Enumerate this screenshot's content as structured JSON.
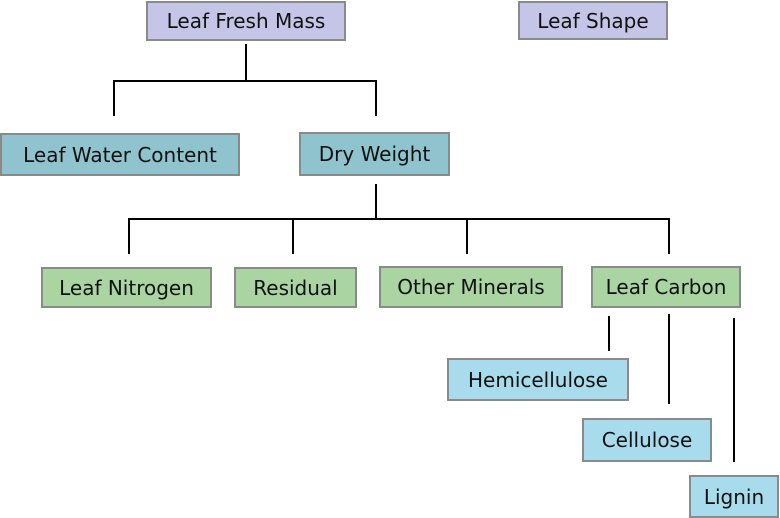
{
  "diagram": {
    "nodes": {
      "leaf_fresh_mass": "Leaf Fresh Mass",
      "leaf_shape": "Leaf Shape",
      "leaf_water_content": "Leaf Water Content",
      "dry_weight": "Dry Weight",
      "leaf_nitrogen": "Leaf Nitrogen",
      "residual": "Residual",
      "other_minerals": "Other Minerals",
      "leaf_carbon": "Leaf Carbon",
      "hemicellulose": "Hemicellulose",
      "cellulose": "Cellulose",
      "lignin": "Lignin"
    },
    "edges": [
      [
        "leaf_fresh_mass",
        "leaf_water_content"
      ],
      [
        "leaf_fresh_mass",
        "dry_weight"
      ],
      [
        "dry_weight",
        "leaf_nitrogen"
      ],
      [
        "dry_weight",
        "residual"
      ],
      [
        "dry_weight",
        "other_minerals"
      ],
      [
        "dry_weight",
        "leaf_carbon"
      ],
      [
        "leaf_carbon",
        "hemicellulose"
      ],
      [
        "leaf_carbon",
        "cellulose"
      ],
      [
        "leaf_carbon",
        "lignin"
      ]
    ],
    "colors": {
      "level_1": "#c5c5e8",
      "level_2": "#8fc4cf",
      "level_3": "#aad5a2",
      "level_4": "#a8dcec",
      "border": "#8a8a8a",
      "connector": "#000000"
    }
  }
}
